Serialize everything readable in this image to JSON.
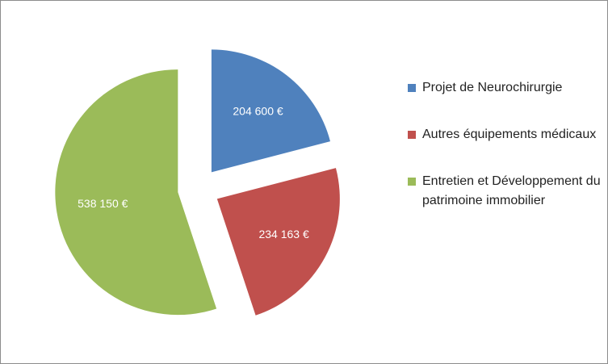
{
  "chart_data": {
    "type": "pie",
    "exploded": true,
    "legend_position": "right",
    "slices": [
      {
        "name": "Projet de Neurochirurgie",
        "value": 204600,
        "label": "204 600 €",
        "color": "#4f81bd"
      },
      {
        "name": "Autres équipements médicaux",
        "value": 234163,
        "label": "234 163 €",
        "color": "#c0504d"
      },
      {
        "name": "Entretien et Développement du patrimoine immobilier",
        "value": 538150,
        "label": "538 150 €",
        "color": "#9bbb59"
      }
    ]
  }
}
